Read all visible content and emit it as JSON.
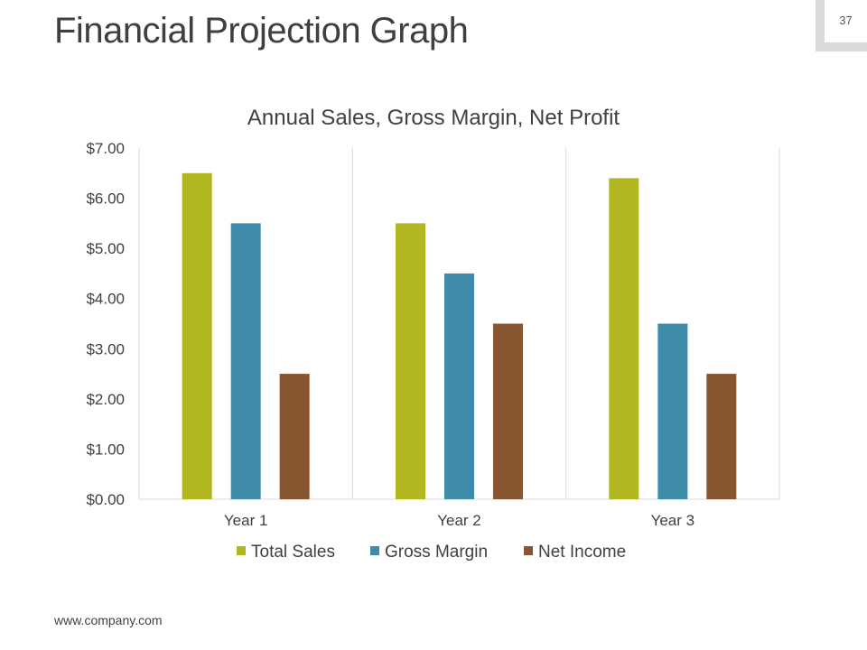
{
  "slide": {
    "title": "Financial Projection Graph",
    "page_number": "37",
    "footer_url": "www.company.com"
  },
  "chart_data": {
    "type": "bar",
    "title": "Annual Sales, Gross Margin, Net Profit",
    "categories": [
      "Year 1",
      "Year 2",
      "Year 3"
    ],
    "series": [
      {
        "name": "Total Sales",
        "color": "#b0b721",
        "values": [
          6.5,
          5.5,
          6.4
        ]
      },
      {
        "name": "Gross Margin",
        "color": "#3f8caa",
        "values": [
          5.5,
          4.5,
          3.5
        ]
      },
      {
        "name": "Net Income",
        "color": "#875530",
        "values": [
          2.5,
          3.5,
          2.5
        ]
      }
    ],
    "y_ticks": [
      "$0.00",
      "$1.00",
      "$2.00",
      "$3.00",
      "$4.00",
      "$5.00",
      "$6.00",
      "$7.00"
    ],
    "ylim": [
      0,
      7
    ],
    "xlabel": "",
    "ylabel": "",
    "legend_position": "bottom",
    "grid": "vertical category separators"
  }
}
